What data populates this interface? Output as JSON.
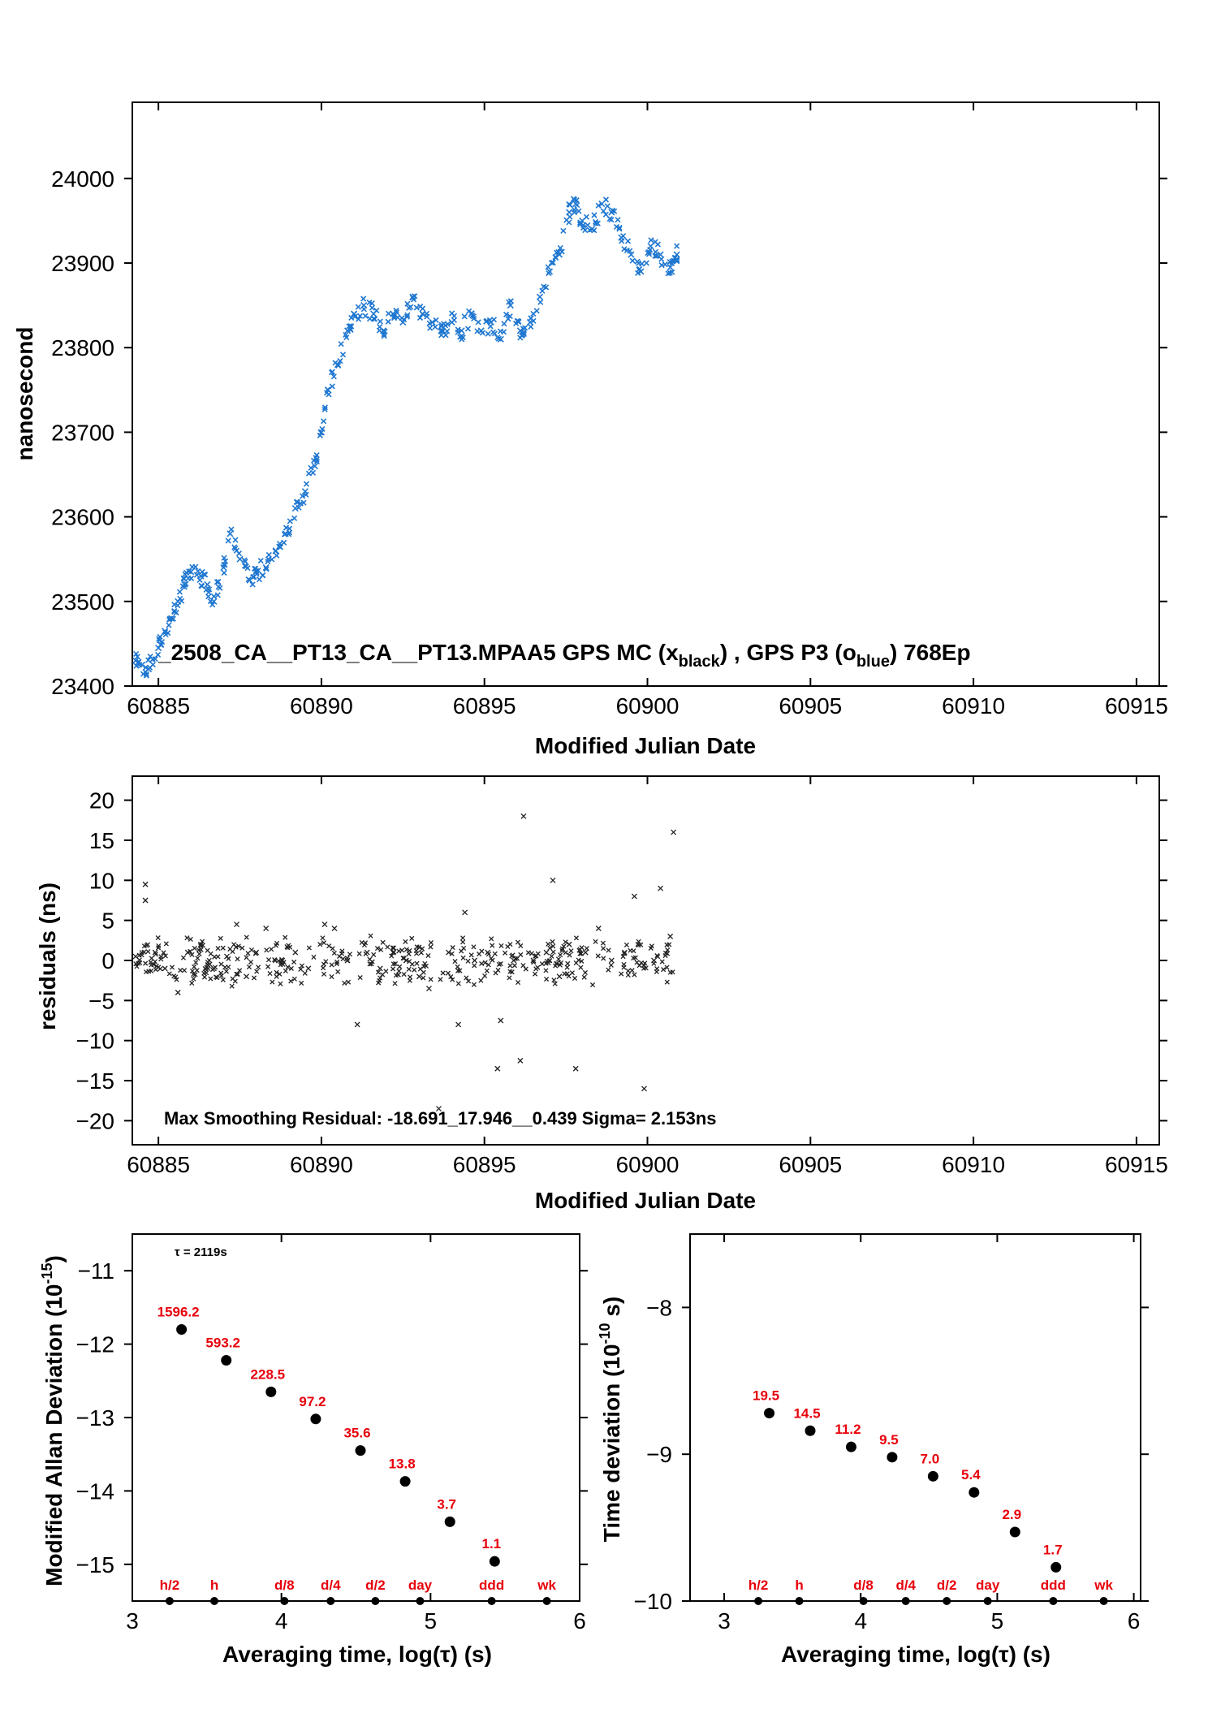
{
  "colors": {
    "blue": "#1f77d0",
    "black": "#000000",
    "red": "#e8000b"
  },
  "top_panel": {
    "ylabel": "nanosecond",
    "xlabel": "Modified Julian Date",
    "info_main": "_2508_CA__PT13_CA__PT13.MPAA5     GPS MC (x",
    "info_sub1": "black",
    "info_mid": ") ,  GPS P3 (o",
    "info_sub2": "blue",
    "info_end": ")  768Ep"
  },
  "middle_panel": {
    "ylabel": "residuals (ns)",
    "xlabel": "Modified Julian Date",
    "info": "Max Smoothing Residual: -18.691_17.946__0.439  Sigma= 2.153ns"
  },
  "left_bottom": {
    "ylabel_main": "Modified Allan Deviation (10",
    "ylabel_sup": "-15",
    "ylabel_end": ")",
    "xlabel": "Averaging time, log(τ) (s)",
    "tau_note": "τ = 2119s"
  },
  "right_bottom": {
    "ylabel_main": "Time deviation (10",
    "ylabel_sup": "-10",
    "ylabel_end": " s)",
    "xlabel": "Averaging time, log(τ) (s)"
  },
  "chart_data": [
    {
      "type": "scatter",
      "name": "top",
      "xlim": [
        60884.2,
        60915.7
      ],
      "ylim": [
        23400,
        24090
      ],
      "x_ticks": [
        60885,
        60890,
        60895,
        60900,
        60905,
        60910,
        60915
      ],
      "y_ticks": [
        23400,
        23500,
        23600,
        23700,
        23800,
        23900,
        24000
      ],
      "series": [
        {
          "color": "#1f77d0",
          "marker": "x",
          "points": [
            [
              60884.3,
              23430
            ],
            [
              60884.5,
              23425
            ],
            [
              60884.7,
              23420
            ],
            [
              60885.0,
              23445
            ],
            [
              60885.2,
              23465
            ],
            [
              60885.4,
              23480
            ],
            [
              60885.6,
              23500
            ],
            [
              60885.8,
              23520
            ],
            [
              60886.0,
              23535
            ],
            [
              60886.3,
              23530
            ],
            [
              60886.5,
              23520
            ],
            [
              60886.7,
              23500
            ],
            [
              60887.0,
              23540
            ],
            [
              60887.2,
              23580
            ],
            [
              60887.5,
              23550
            ],
            [
              60887.8,
              23525
            ],
            [
              60888.0,
              23535
            ],
            [
              60888.3,
              23540
            ],
            [
              60888.6,
              23560
            ],
            [
              60888.9,
              23580
            ],
            [
              60889.2,
              23610
            ],
            [
              60889.5,
              23630
            ],
            [
              60889.8,
              23660
            ],
            [
              60890.0,
              23700
            ],
            [
              60890.2,
              23750
            ],
            [
              60890.5,
              23780
            ],
            [
              60890.8,
              23820
            ],
            [
              60891.0,
              23840
            ],
            [
              60891.3,
              23850
            ],
            [
              60891.6,
              23840
            ],
            [
              60891.9,
              23820
            ],
            [
              60892.2,
              23840
            ],
            [
              60892.5,
              23830
            ],
            [
              60892.8,
              23860
            ],
            [
              60893.1,
              23840
            ],
            [
              60893.4,
              23830
            ],
            [
              60893.7,
              23820
            ],
            [
              60894.0,
              23830
            ],
            [
              60894.3,
              23820
            ],
            [
              60894.6,
              23840
            ],
            [
              60894.9,
              23820
            ],
            [
              60895.2,
              23830
            ],
            [
              60895.5,
              23810
            ],
            [
              60895.8,
              23850
            ],
            [
              60896.1,
              23820
            ],
            [
              60896.4,
              23830
            ],
            [
              60896.7,
              23860
            ],
            [
              60897.0,
              23890
            ],
            [
              60897.3,
              23910
            ],
            [
              60897.6,
              23960
            ],
            [
              60897.8,
              23970
            ],
            [
              60898.0,
              23950
            ],
            [
              60898.3,
              23940
            ],
            [
              60898.6,
              23970
            ],
            [
              60898.9,
              23960
            ],
            [
              60899.2,
              23930
            ],
            [
              60899.5,
              23910
            ],
            [
              60899.8,
              23890
            ],
            [
              60900.1,
              23920
            ],
            [
              60900.4,
              23910
            ],
            [
              60900.7,
              23895
            ],
            [
              60900.9,
              23910
            ]
          ]
        }
      ]
    },
    {
      "type": "scatter",
      "name": "residuals",
      "xlim": [
        60884.2,
        60915.7
      ],
      "ylim": [
        -23,
        23
      ],
      "x_ticks": [
        60885,
        60890,
        60895,
        60900,
        60905,
        60910,
        60915
      ],
      "y_ticks": [
        -20,
        -15,
        -10,
        -5,
        0,
        5,
        10,
        15,
        20
      ],
      "series": [
        {
          "color": "#000000",
          "marker": "x",
          "points": [
            [
              60884.3,
              0.5
            ],
            [
              60884.6,
              9.5
            ],
            [
              60884.6,
              7.5
            ],
            [
              60884.9,
              1
            ],
            [
              60885.2,
              -1
            ],
            [
              60885.6,
              -4
            ],
            [
              60885.9,
              1
            ],
            [
              60886.3,
              2
            ],
            [
              60886.7,
              -1
            ],
            [
              60887.1,
              0.5
            ],
            [
              60887.4,
              4.5
            ],
            [
              60887.7,
              -2
            ],
            [
              60888.0,
              1
            ],
            [
              60888.3,
              4
            ],
            [
              60888.8,
              0
            ],
            [
              60889.2,
              1
            ],
            [
              60889.6,
              -1
            ],
            [
              60890.1,
              4.5
            ],
            [
              60890.4,
              4
            ],
            [
              60890.8,
              0
            ],
            [
              60891.1,
              -8
            ],
            [
              60891.4,
              1
            ],
            [
              60891.8,
              -1
            ],
            [
              60892.2,
              1
            ],
            [
              60892.6,
              0
            ],
            [
              60893.0,
              -2
            ],
            [
              60893.3,
              -3.5
            ],
            [
              60893.6,
              -18.5
            ],
            [
              60893.9,
              1
            ],
            [
              60894.2,
              -8
            ],
            [
              60894.4,
              6
            ],
            [
              60894.7,
              0
            ],
            [
              60895.1,
              1
            ],
            [
              60895.4,
              -13.5
            ],
            [
              60895.5,
              -7.5
            ],
            [
              60895.9,
              0
            ],
            [
              60896.1,
              -12.5
            ],
            [
              60896.2,
              18
            ],
            [
              60896.5,
              0
            ],
            [
              60896.9,
              1
            ],
            [
              60897.1,
              10
            ],
            [
              60897.3,
              -2
            ],
            [
              60897.6,
              2
            ],
            [
              60897.8,
              -13.5
            ],
            [
              60898.1,
              1
            ],
            [
              60898.5,
              4
            ],
            [
              60898.9,
              0
            ],
            [
              60899.3,
              1
            ],
            [
              60899.6,
              8
            ],
            [
              60899.9,
              -16
            ],
            [
              60900.2,
              0
            ],
            [
              60900.4,
              9
            ],
            [
              60900.7,
              3
            ],
            [
              60900.8,
              16
            ]
          ]
        }
      ]
    },
    {
      "type": "scatter",
      "name": "modified_allan_deviation",
      "xlim": [
        3,
        6
      ],
      "ylim": [
        -15.5,
        -10.5
      ],
      "x_ticks": [
        3,
        4,
        5,
        6
      ],
      "y_ticks": [
        -15,
        -14,
        -13,
        -12,
        -11
      ],
      "points": [
        {
          "x": 3.33,
          "y": -11.8,
          "label": "1596.2"
        },
        {
          "x": 3.63,
          "y": -12.22,
          "label": "593.2"
        },
        {
          "x": 3.93,
          "y": -12.65,
          "label": "228.5"
        },
        {
          "x": 4.23,
          "y": -13.02,
          "label": "97.2"
        },
        {
          "x": 4.53,
          "y": -13.45,
          "label": "35.6"
        },
        {
          "x": 4.83,
          "y": -13.87,
          "label": "13.8"
        },
        {
          "x": 5.13,
          "y": -14.42,
          "label": "3.7"
        },
        {
          "x": 5.43,
          "y": -14.96,
          "label": "1.1"
        }
      ],
      "markers": [
        {
          "x": 3.25,
          "label": "h/2"
        },
        {
          "x": 3.55,
          "label": "h"
        },
        {
          "x": 4.02,
          "label": "d/8"
        },
        {
          "x": 4.33,
          "label": "d/4"
        },
        {
          "x": 4.63,
          "label": "d/2"
        },
        {
          "x": 4.93,
          "label": "day"
        },
        {
          "x": 5.41,
          "label": "ddd"
        },
        {
          "x": 5.78,
          "label": "wk"
        }
      ]
    },
    {
      "type": "scatter",
      "name": "time_deviation",
      "xlim": [
        2.75,
        6.05
      ],
      "ylim": [
        -10,
        -7.5
      ],
      "x_ticks": [
        3,
        4,
        5,
        6
      ],
      "y_ticks": [
        -10,
        -9,
        -8
      ],
      "points": [
        {
          "x": 3.33,
          "y": -8.72,
          "label": "19.5"
        },
        {
          "x": 3.63,
          "y": -8.84,
          "label": "14.5"
        },
        {
          "x": 3.93,
          "y": -8.95,
          "label": "11.2"
        },
        {
          "x": 4.23,
          "y": -9.02,
          "label": "9.5"
        },
        {
          "x": 4.53,
          "y": -9.15,
          "label": "7.0"
        },
        {
          "x": 4.83,
          "y": -9.26,
          "label": "5.4"
        },
        {
          "x": 5.13,
          "y": -9.53,
          "label": "2.9"
        },
        {
          "x": 5.43,
          "y": -9.77,
          "label": "1.7"
        }
      ],
      "markers": [
        {
          "x": 3.25,
          "label": "h/2"
        },
        {
          "x": 3.55,
          "label": "h"
        },
        {
          "x": 4.02,
          "label": "d/8"
        },
        {
          "x": 4.33,
          "label": "d/4"
        },
        {
          "x": 4.63,
          "label": "d/2"
        },
        {
          "x": 4.93,
          "label": "day"
        },
        {
          "x": 5.41,
          "label": "ddd"
        },
        {
          "x": 5.78,
          "label": "wk"
        }
      ]
    }
  ]
}
